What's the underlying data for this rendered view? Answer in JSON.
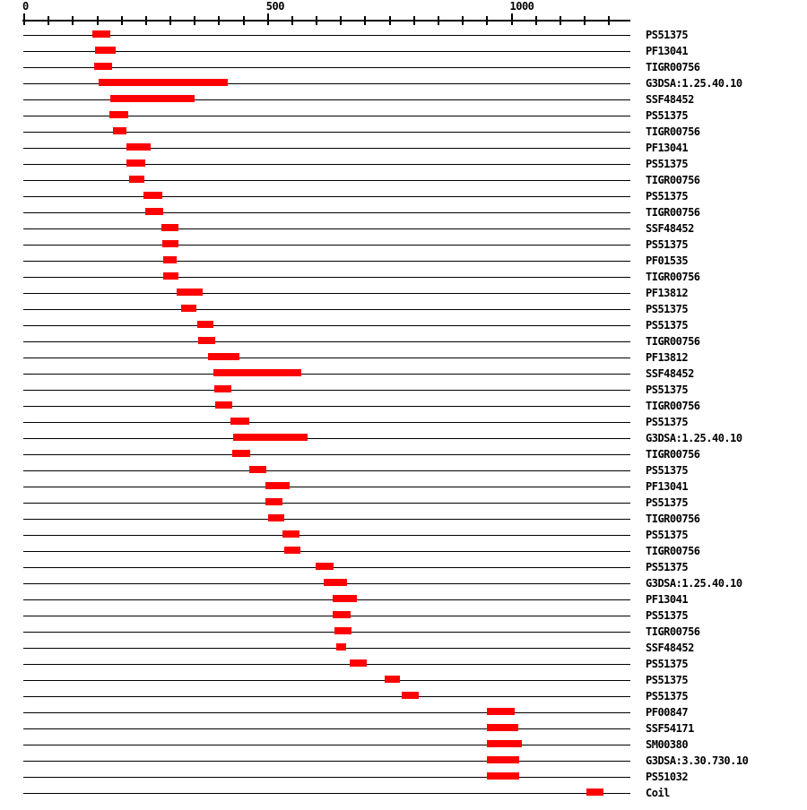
{
  "chart_data": {
    "type": "bar",
    "variant": "horizontal-interval-track",
    "description": "Protein signature match plot: one track per signature match, red bar spans matched region of sequence",
    "axis": {
      "min": 0,
      "max": 1243,
      "tick_step": 50,
      "tick_min": 0,
      "tick_max": 1200,
      "grid": false,
      "labeled_ticks": [
        {
          "value": 0,
          "label": "0"
        },
        {
          "value": 500,
          "label": "500"
        },
        {
          "value": 1000,
          "label": "1000"
        }
      ]
    },
    "rows": [
      {
        "label": "PS51375",
        "start": 140,
        "end": 177
      },
      {
        "label": "PF13041",
        "start": 145,
        "end": 188
      },
      {
        "label": "TIGR00756",
        "start": 144,
        "end": 180
      },
      {
        "label": "G3DSA:1.25.40.10",
        "start": 153,
        "end": 418
      },
      {
        "label": "SSF48452",
        "start": 176,
        "end": 349
      },
      {
        "label": "PS51375",
        "start": 175,
        "end": 213
      },
      {
        "label": "TIGR00756",
        "start": 182,
        "end": 210
      },
      {
        "label": "PF13041",
        "start": 210,
        "end": 259
      },
      {
        "label": "PS51375",
        "start": 210,
        "end": 248
      },
      {
        "label": "TIGR00756",
        "start": 216,
        "end": 247
      },
      {
        "label": "PS51375",
        "start": 245,
        "end": 283
      },
      {
        "label": "TIGR00756",
        "start": 249,
        "end": 285
      },
      {
        "label": "SSF48452",
        "start": 282,
        "end": 316
      },
      {
        "label": "PS51375",
        "start": 283,
        "end": 317
      },
      {
        "label": "PF01535",
        "start": 285,
        "end": 312
      },
      {
        "label": "TIGR00756",
        "start": 285,
        "end": 316
      },
      {
        "label": "PF13812",
        "start": 312,
        "end": 367
      },
      {
        "label": "PS51375",
        "start": 321,
        "end": 354
      },
      {
        "label": "PS51375",
        "start": 355,
        "end": 389
      },
      {
        "label": "TIGR00756",
        "start": 356,
        "end": 391
      },
      {
        "label": "PF13812",
        "start": 377,
        "end": 441
      },
      {
        "label": "SSF48452",
        "start": 388,
        "end": 568
      },
      {
        "label": "PS51375",
        "start": 390,
        "end": 424
      },
      {
        "label": "TIGR00756",
        "start": 391,
        "end": 426
      },
      {
        "label": "PS51375",
        "start": 423,
        "end": 462
      },
      {
        "label": "G3DSA:1.25.40.10",
        "start": 429,
        "end": 582
      },
      {
        "label": "TIGR00756",
        "start": 427,
        "end": 464
      },
      {
        "label": "PS51375",
        "start": 461,
        "end": 496
      },
      {
        "label": "PF13041",
        "start": 494,
        "end": 544
      },
      {
        "label": "PS51375",
        "start": 495,
        "end": 529
      },
      {
        "label": "TIGR00756",
        "start": 500,
        "end": 534
      },
      {
        "label": "PS51375",
        "start": 530,
        "end": 565
      },
      {
        "label": "TIGR00756",
        "start": 533,
        "end": 567
      },
      {
        "label": "PS51375",
        "start": 598,
        "end": 635
      },
      {
        "label": "G3DSA:1.25.40.10",
        "start": 614,
        "end": 662
      },
      {
        "label": "PF13041",
        "start": 632,
        "end": 683
      },
      {
        "label": "PS51375",
        "start": 633,
        "end": 669
      },
      {
        "label": "TIGR00756",
        "start": 636,
        "end": 672
      },
      {
        "label": "SSF48452",
        "start": 640,
        "end": 660
      },
      {
        "label": "PS51375",
        "start": 668,
        "end": 703
      },
      {
        "label": "PS51375",
        "start": 739,
        "end": 771
      },
      {
        "label": "PS51375",
        "start": 775,
        "end": 809
      },
      {
        "label": "PF00847",
        "start": 949,
        "end": 1006
      },
      {
        "label": "SSF54171",
        "start": 949,
        "end": 1014
      },
      {
        "label": "SM00380",
        "start": 949,
        "end": 1021
      },
      {
        "label": "G3DSA:3.30.730.10",
        "start": 949,
        "end": 1016
      },
      {
        "label": "PS51032",
        "start": 949,
        "end": 1015
      },
      {
        "label": "Coil",
        "start": 1154,
        "end": 1188
      }
    ]
  },
  "colors": {
    "bar": "#ff0000",
    "axis": "#000000",
    "row_line": "#000000",
    "text": "#000000",
    "background": "#ffffff"
  }
}
